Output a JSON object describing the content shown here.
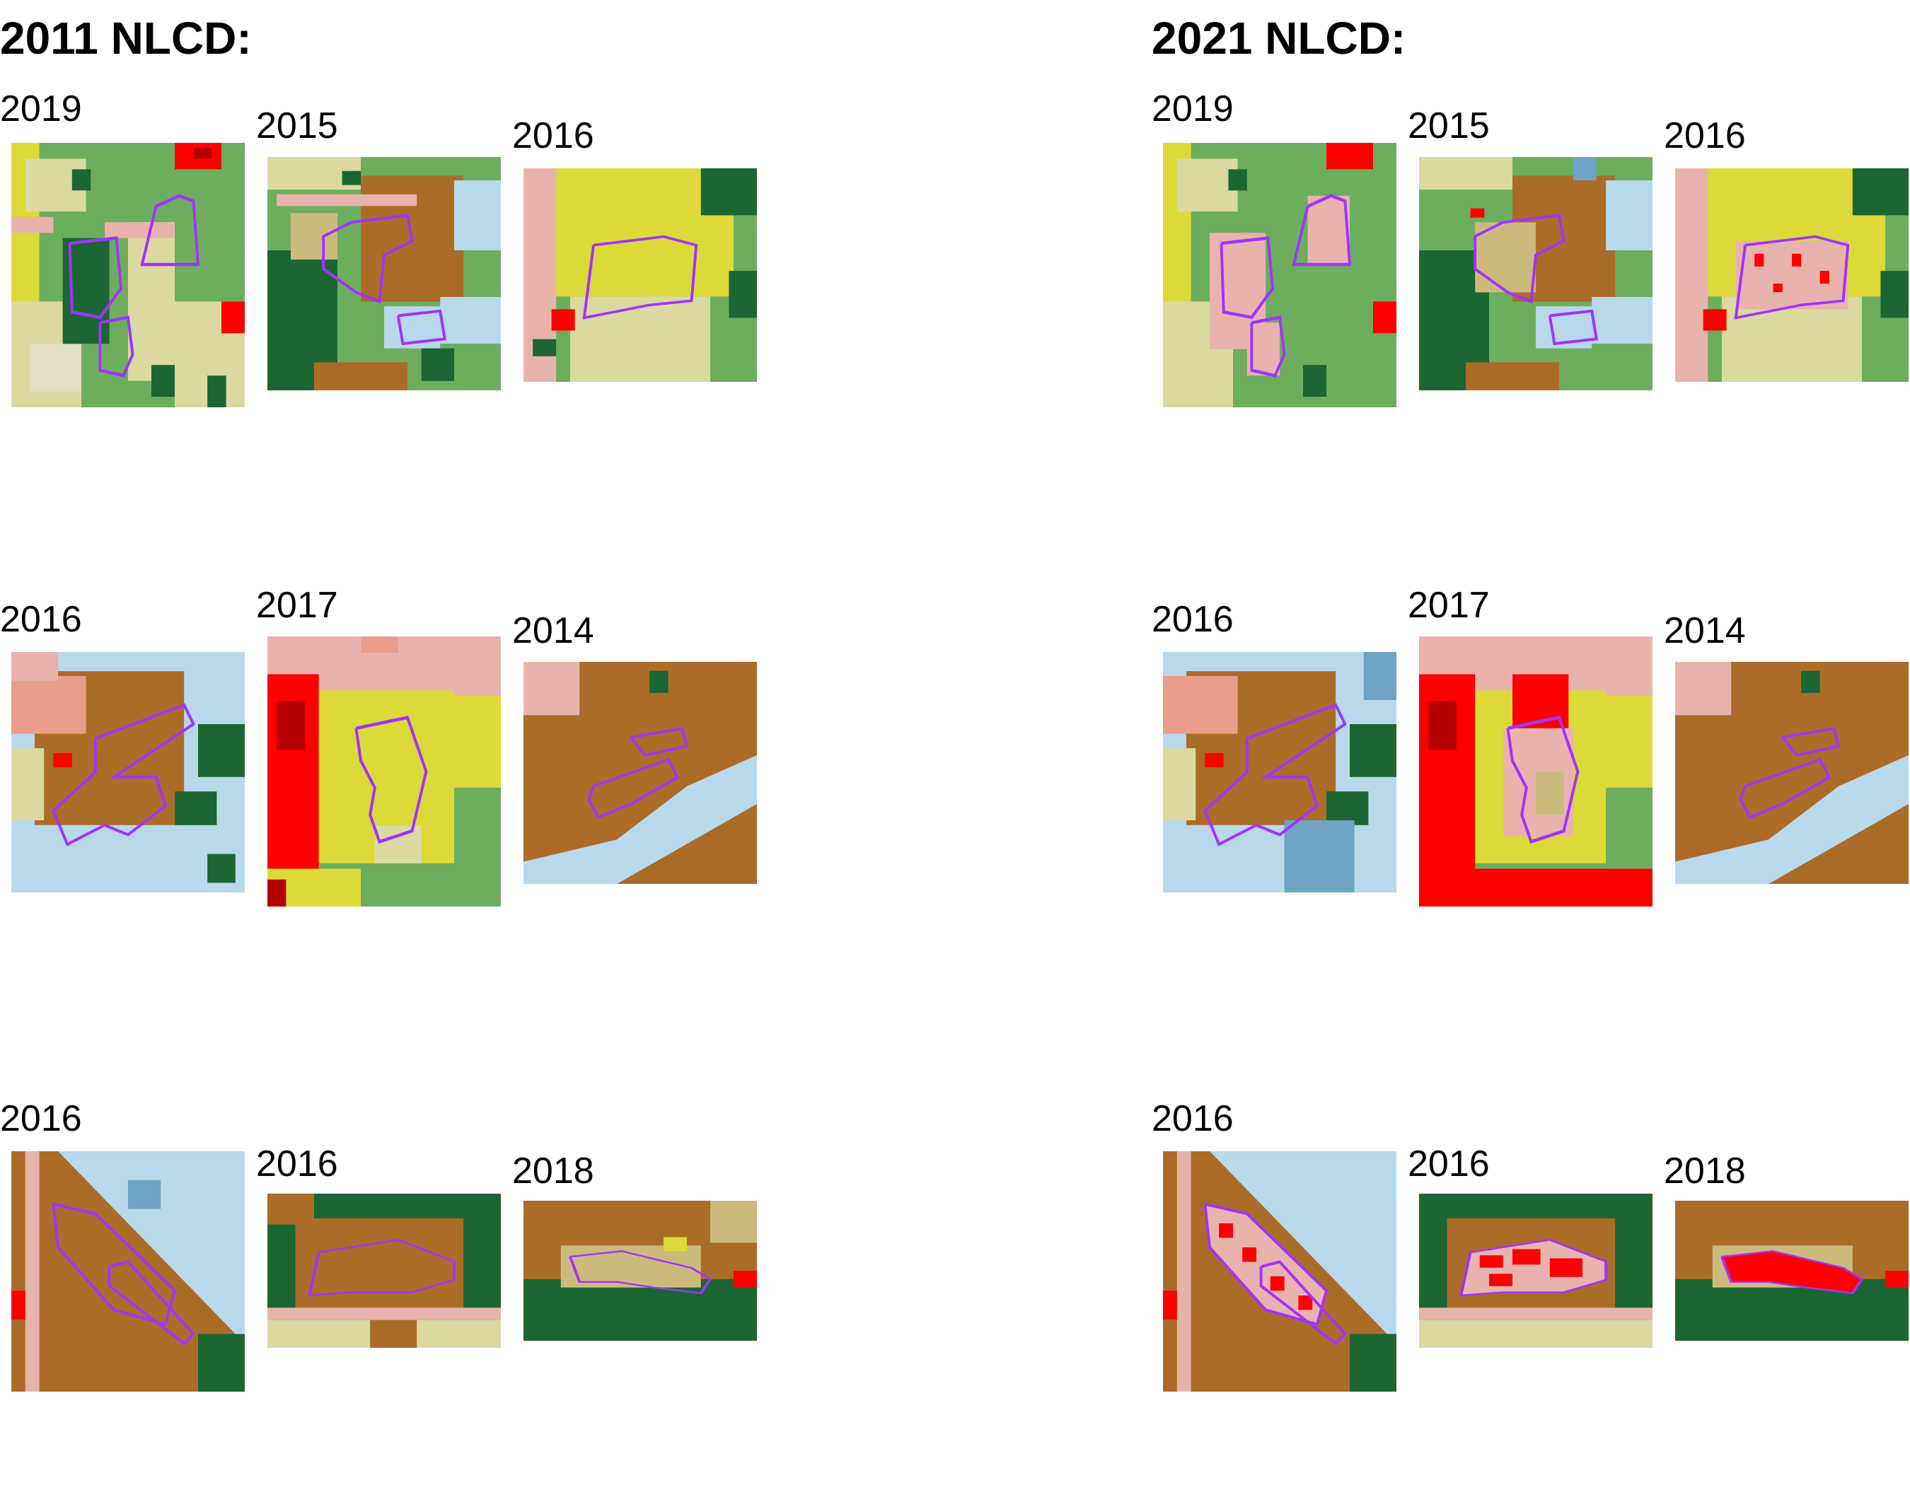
{
  "titles": {
    "left": "2011 NLCD:",
    "right": "2021 NLCD:"
  },
  "rows": [
    {
      "years": [
        "2019",
        "2015",
        "2016"
      ]
    },
    {
      "years": [
        "2016",
        "2017",
        "2014"
      ]
    },
    {
      "years": [
        "2016",
        "2016",
        "2018"
      ]
    }
  ],
  "colors": {
    "outline": "#a133ff",
    "water": "#b8d9eb",
    "wetland": "#6fa3c4",
    "developed_open": "#e8b3ad",
    "developed_low": "#eb9d8c",
    "developed_med": "#ff0000",
    "developed_high": "#b50000",
    "barren": "#e3dec7",
    "forest_deciduous": "#6cae5e",
    "forest_evergreen": "#1b6633",
    "shrub": "#ccba7d",
    "grassland": "#dbd9a0",
    "pasture": "#dcd939",
    "crops": "#ab6c28"
  }
}
